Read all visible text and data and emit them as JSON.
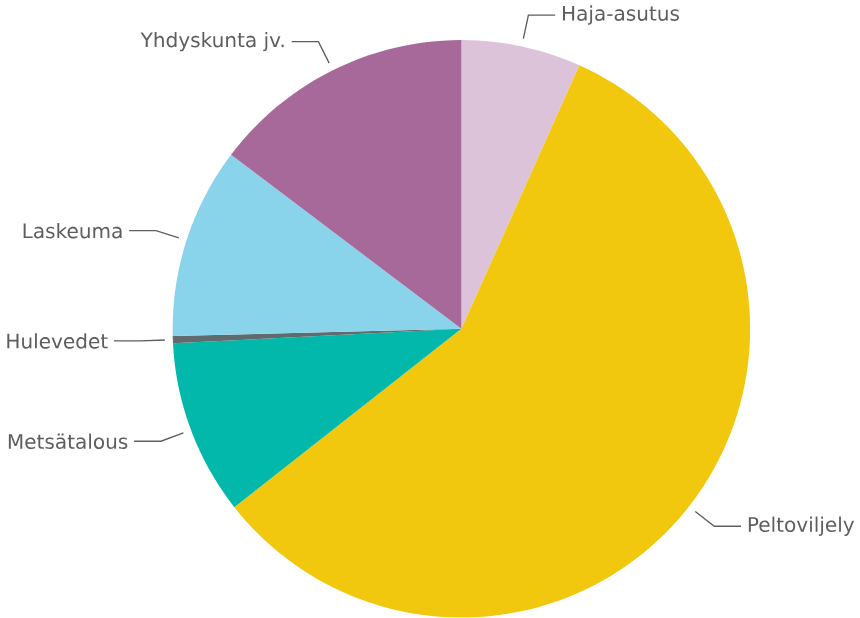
{
  "chart_data": {
    "type": "pie",
    "categories": [
      "Haja-asutus",
      "Peltoviljely",
      "Metsätalous",
      "Hulevedet",
      "Laskeuma",
      "Yhdyskunta jv."
    ],
    "values": [
      6.7,
      57.7,
      9.8,
      0.4,
      10.7,
      14.7
    ],
    "colors": [
      "#dcc3d9",
      "#f2c80f",
      "#01b8aa",
      "#5f6b6d",
      "#8ad4eb",
      "#a66999"
    ]
  }
}
